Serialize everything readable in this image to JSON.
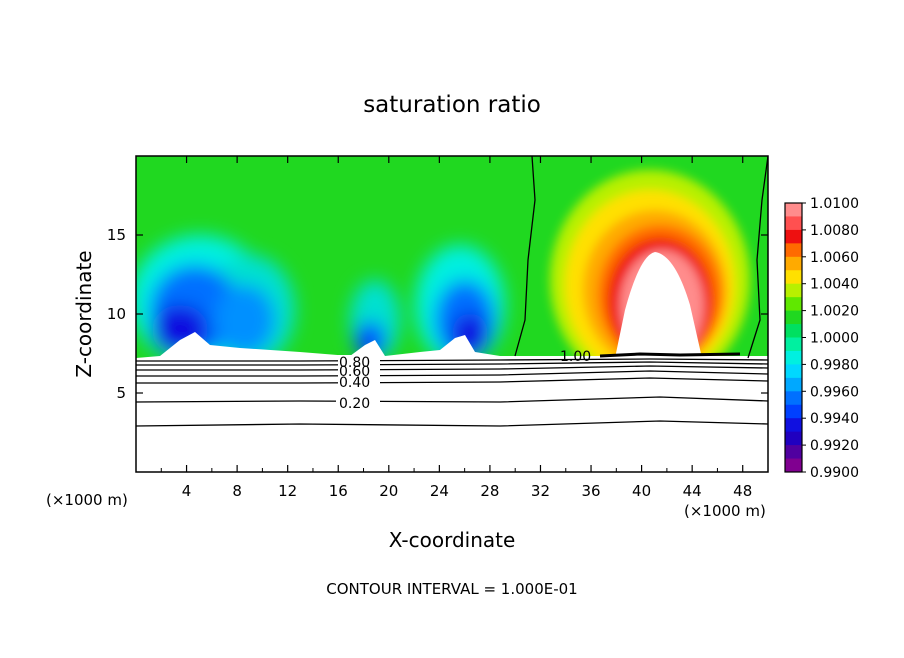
{
  "chart_data": {
    "type": "heatmap",
    "title": "saturation ratio",
    "xlabel": "X-coordinate",
    "ylabel": "Z-coordinate",
    "x_unit_left": "(×1000 m)",
    "x_unit_right": "(×1000 m)",
    "xlim": [
      0,
      50
    ],
    "ylim": [
      0,
      20
    ],
    "xticks": [
      4,
      8,
      12,
      16,
      20,
      24,
      28,
      32,
      36,
      40,
      44,
      48
    ],
    "yticks": [
      5,
      10,
      15
    ],
    "footer": "CONTOUR INTERVAL = 1.000E-01",
    "colorbar": {
      "labels": [
        "1.0100",
        "1.0080",
        "1.0060",
        "1.0040",
        "1.0020",
        "1.0000",
        "0.9980",
        "0.9960",
        "0.9940",
        "0.9920",
        "0.9900"
      ],
      "colors": [
        "#ff8c8c",
        "#ff5050",
        "#ee1010",
        "#ff6a00",
        "#ffaa00",
        "#ffe000",
        "#b8f000",
        "#60e800",
        "#20d820",
        "#00e060",
        "#00f0a0",
        "#00f0e0",
        "#00d8ff",
        "#00a8ff",
        "#0070ff",
        "#0040ff",
        "#1010e0",
        "#2000c0",
        "#5000a0",
        "#800090"
      ]
    },
    "contour_lines": [
      {
        "label": "0.80",
        "level": 0.8
      },
      {
        "label": "0.60",
        "level": 0.6
      },
      {
        "label": "0.40",
        "level": 0.4
      },
      {
        "label": "0.20",
        "level": 0.2
      },
      {
        "label": "1.00",
        "level": 1.0
      }
    ],
    "field_summary": {
      "cloud_base_z": 7.3,
      "dry_region_x": [
        0,
        30
      ],
      "moist_region_x": [
        30,
        49
      ],
      "max_peak_x": 40.5,
      "max_peak_z": 16
    }
  }
}
